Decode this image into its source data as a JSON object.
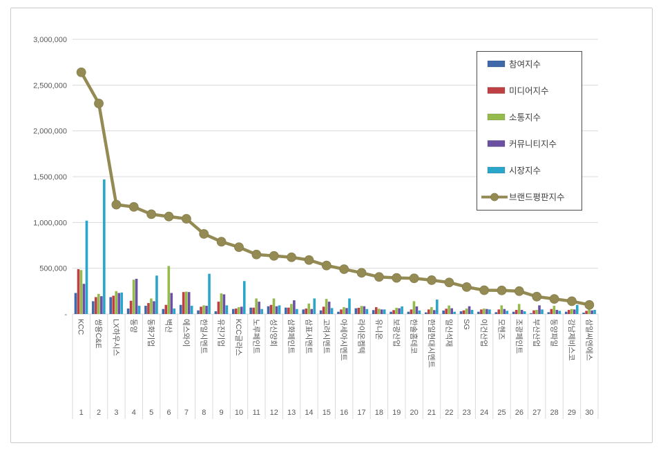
{
  "chart_data": {
    "type": "bar",
    "subtype": "grouped-bars-with-line-overlay",
    "title": "",
    "xlabel": "",
    "ylabel": "",
    "categories": [
      "KCC",
      "쌍용C&E",
      "LX하우시스",
      "동양",
      "동화기업",
      "벽산",
      "에스와이",
      "한일시멘트",
      "유진기업",
      "KCC글라스",
      "노루페인트",
      "성신양회",
      "삼화페인트",
      "삼표시멘트",
      "고려시멘트",
      "아세아시멘트",
      "라이온켐텍",
      "유니온",
      "보광산업",
      "한솔홈데코",
      "한일현대시멘트",
      "일신석재",
      "SG",
      "이건산업",
      "모헨즈",
      "조광페인트",
      "부산산업",
      "동양파일",
      "강남제비스코",
      "삼일씨엔에스"
    ],
    "ranks": [
      "1",
      "2",
      "3",
      "4",
      "5",
      "6",
      "7",
      "8",
      "9",
      "10",
      "11",
      "12",
      "13",
      "14",
      "15",
      "16",
      "17",
      "18",
      "19",
      "20",
      "21",
      "22",
      "23",
      "24",
      "25",
      "26",
      "27",
      "28",
      "29",
      "30"
    ],
    "series": [
      {
        "key": "participation",
        "name": "참여지수",
        "type": "bar",
        "color": "#3F69A9",
        "values": [
          230000,
          140000,
          185000,
          60000,
          90000,
          55000,
          100000,
          40000,
          30000,
          55000,
          70000,
          85000,
          70000,
          50000,
          40000,
          25000,
          63000,
          43000,
          25000,
          25000,
          18000,
          38000,
          30000,
          25000,
          20000,
          25000,
          10000,
          20000,
          25000,
          15000
        ]
      },
      {
        "key": "media",
        "name": "미디어지수",
        "type": "bar",
        "color": "#BE4043",
        "values": [
          490000,
          185000,
          200000,
          145000,
          120000,
          100000,
          240000,
          80000,
          135000,
          60000,
          70000,
          100000,
          70000,
          60000,
          80000,
          50000,
          68000,
          75000,
          43000,
          50000,
          50000,
          58000,
          40000,
          50000,
          50000,
          45000,
          40000,
          55000,
          45000,
          35000
        ]
      },
      {
        "key": "communication",
        "name": "소통지수",
        "type": "bar",
        "color": "#95BB4D",
        "values": [
          480000,
          220000,
          250000,
          375000,
          170000,
          525000,
          245000,
          95000,
          225000,
          75000,
          170000,
          170000,
          110000,
          115000,
          165000,
          75000,
          88000,
          58000,
          68000,
          140000,
          75000,
          93000,
          60000,
          60000,
          95000,
          110000,
          45000,
          90000,
          55000,
          70000
        ]
      },
      {
        "key": "community",
        "name": "커뮤니티지수",
        "type": "bar",
        "color": "#6C51A3",
        "values": [
          330000,
          195000,
          230000,
          385000,
          140000,
          230000,
          240000,
          90000,
          215000,
          80000,
          135000,
          85000,
          150000,
          55000,
          135000,
          65000,
          85000,
          50000,
          63000,
          83000,
          43000,
          63000,
          85000,
          55000,
          55000,
          45000,
          95000,
          45000,
          50000,
          40000
        ]
      },
      {
        "key": "market",
        "name": "시장지수",
        "type": "bar",
        "color": "#2BA6CB",
        "values": [
          1020000,
          1470000,
          235000,
          90000,
          420000,
          60000,
          90000,
          440000,
          95000,
          360000,
          55000,
          95000,
          55000,
          170000,
          65000,
          170000,
          55000,
          50000,
          83000,
          38000,
          158000,
          25000,
          45000,
          50000,
          35000,
          30000,
          50000,
          35000,
          100000,
          45000
        ]
      },
      {
        "key": "reputation",
        "name": "브랜드평판지수",
        "type": "line",
        "color": "#948A54",
        "values": [
          2640000,
          2300000,
          1195000,
          1170000,
          1090000,
          1065000,
          1040000,
          875000,
          790000,
          730000,
          650000,
          635000,
          620000,
          590000,
          530000,
          490000,
          450000,
          405000,
          395000,
          390000,
          370000,
          345000,
          295000,
          260000,
          258000,
          250000,
          190000,
          165000,
          140000,
          100000
        ]
      }
    ],
    "y_axis": {
      "min": 0,
      "max": 3000000,
      "step": 500000,
      "tick_labels_top_down": [
        "3,000,000",
        "2,500,000",
        "2,000,000",
        "1,500,000",
        "1,000,000",
        "500,000",
        "-"
      ]
    },
    "grid": true,
    "legend_position": "top-right"
  },
  "colors": {
    "grid": "#d9d9d9",
    "axis_text": "#595959",
    "category_text": "#595959",
    "frame_border": "#c9c9c9",
    "legend_border": "#4a4a4a",
    "legend_text": "#404040",
    "background": "#ffffff",
    "line_marker_stroke": "#877d4a"
  }
}
